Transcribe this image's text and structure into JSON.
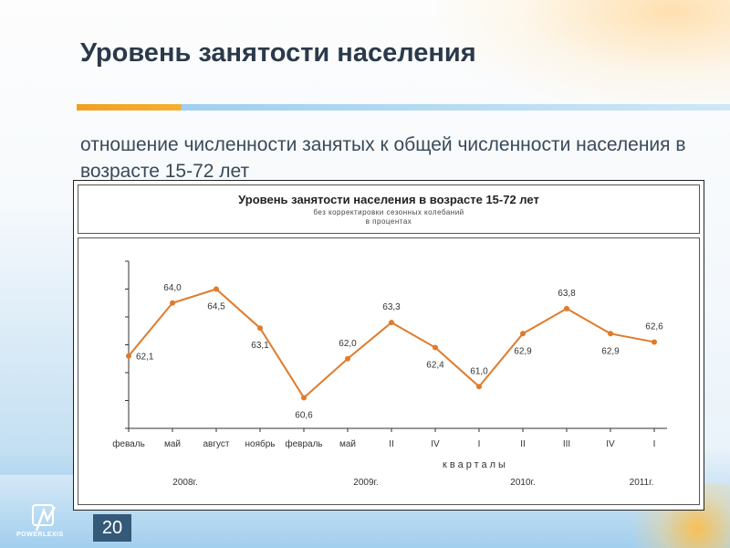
{
  "slide": {
    "title": "Уровень занятости населения",
    "subtitle": "отношение численности занятых к общей численности населения в возрасте 15-72 лет",
    "page_number": "20",
    "logo_text": "POWERLEXIS"
  },
  "chart_data": {
    "type": "line",
    "title": "Уровень занятости населения в возрасте 15-72 лет",
    "subtitle_lines": [
      "без корректировки сезонных колебаний",
      "в процентах"
    ],
    "categories": [
      "феваль",
      "май",
      "август",
      "ноябрь",
      "февраль",
      "май",
      "II",
      "IV",
      "I",
      "II",
      "III",
      "IV",
      "I"
    ],
    "values": [
      62.1,
      64.0,
      64.5,
      63.1,
      60.6,
      62.0,
      63.3,
      62.4,
      61.0,
      62.9,
      63.8,
      62.9,
      62.6
    ],
    "value_labels": [
      "62,1",
      "64,0",
      "64,5",
      "63,1",
      "60,6",
      "62,0",
      "63,3",
      "62,4",
      "61,0",
      "62,9",
      "63,8",
      "62,9",
      "62,6"
    ],
    "xlabel": "кварталы",
    "year_labels": [
      "2008г.",
      "2009г.",
      "2010г.",
      "2011г."
    ],
    "y_axis_tick_labels_shown": false,
    "grid": false,
    "line_color": "#e07b2b"
  }
}
